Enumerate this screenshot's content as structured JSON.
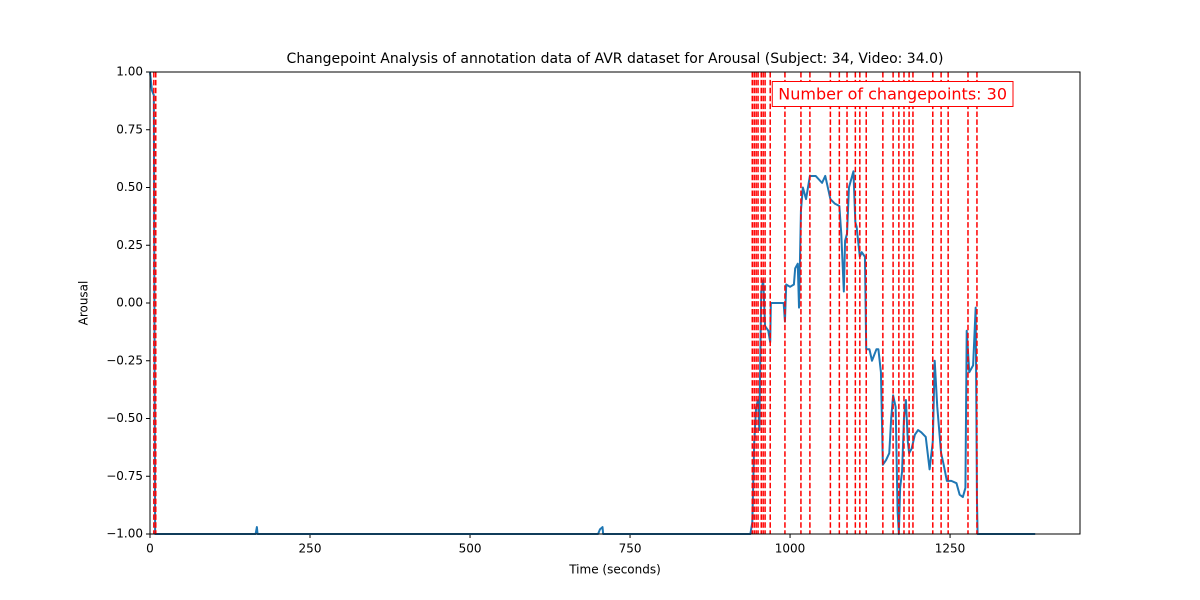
{
  "chart_data": {
    "type": "line",
    "title": "Changepoint Analysis of annotation data of AVR dataset for Arousal (Subject: 34, Video: 34.0)",
    "xlabel": "Time (seconds)",
    "ylabel": "Arousal",
    "annotation": "Number of changepoints: 30",
    "xlim": [
      0,
      1453
    ],
    "xticks": [
      0,
      250,
      500,
      750,
      1000,
      1250
    ],
    "ylim": [
      -1,
      1
    ],
    "yticks": [
      {
        "value": -1,
        "label": "−1.00"
      },
      {
        "value": -0.75,
        "label": "−0.75"
      },
      {
        "value": -0.5,
        "label": "−0.50"
      },
      {
        "value": -0.25,
        "label": "−0.25"
      },
      {
        "value": 0,
        "label": "0.00"
      },
      {
        "value": 0.25,
        "label": "0.25"
      },
      {
        "value": 0.5,
        "label": "0.50"
      },
      {
        "value": 0.75,
        "label": "0.75"
      },
      {
        "value": 1,
        "label": "1.00"
      }
    ],
    "changepoint_color": "#ff0000",
    "changepoints": [
      6,
      9,
      941,
      944,
      947,
      950,
      955,
      958,
      961,
      969,
      992,
      1017,
      1031,
      1063,
      1077,
      1089,
      1102,
      1109,
      1119,
      1145,
      1161,
      1170,
      1178,
      1186,
      1192,
      1223,
      1236,
      1247,
      1278,
      1292
    ],
    "series": [
      {
        "color": "#1f77b4",
        "x": [
          0,
          3,
          6,
          8,
          165,
          167,
          168,
          700,
          703,
          707,
          708,
          938,
          941,
          944,
          947,
          950,
          952,
          955,
          958,
          961,
          966,
          969,
          970,
          990,
          992,
          994,
          1000,
          1006,
          1008,
          1012,
          1014,
          1017,
          1020,
          1025,
          1031,
          1040,
          1050,
          1055,
          1063,
          1070,
          1077,
          1080,
          1084,
          1086,
          1089,
          1092,
          1099,
          1102,
          1104,
          1109,
          1112,
          1117,
          1119,
          1124,
          1128,
          1135,
          1138,
          1142,
          1145,
          1150,
          1155,
          1158,
          1161,
          1165,
          1168,
          1170,
          1172,
          1175,
          1178,
          1181,
          1184,
          1186,
          1190,
          1195,
          1200,
          1205,
          1212,
          1218,
          1223,
          1226,
          1230,
          1236,
          1240,
          1245,
          1252,
          1260,
          1265,
          1270,
          1274,
          1276,
          1280,
          1286,
          1290,
          1292,
          1293,
          1383
        ],
        "values": [
          1.0,
          0.92,
          0.9,
          -1,
          -1,
          -0.97,
          -1,
          -1,
          -0.98,
          -0.97,
          -1,
          -1,
          -0.95,
          -0.6,
          -0.45,
          -0.42,
          -0.55,
          0.05,
          0.1,
          -0.1,
          -0.12,
          -0.17,
          0,
          0,
          -0.08,
          0.08,
          0.07,
          0.08,
          0.15,
          0.17,
          -0.02,
          0.4,
          0.5,
          0.45,
          0.55,
          0.55,
          0.52,
          0.55,
          0.45,
          0.43,
          0.42,
          0.3,
          0.05,
          0.27,
          0.3,
          0.5,
          0.57,
          0.35,
          0.33,
          0.2,
          0.22,
          0.2,
          -0.2,
          -0.2,
          -0.25,
          -0.2,
          -0.2,
          -0.3,
          -0.7,
          -0.68,
          -0.65,
          -0.5,
          -0.4,
          -0.45,
          -0.9,
          -1,
          -0.8,
          -0.73,
          -0.5,
          -0.42,
          -0.6,
          -0.65,
          -0.63,
          -0.57,
          -0.55,
          -0.56,
          -0.58,
          -0.72,
          -0.6,
          -0.25,
          -0.45,
          -0.65,
          -0.7,
          -0.77,
          -0.77,
          -0.78,
          -0.83,
          -0.84,
          -0.8,
          -0.12,
          -0.3,
          -0.27,
          -0.02,
          -0.85,
          -1,
          -1
        ]
      }
    ]
  }
}
